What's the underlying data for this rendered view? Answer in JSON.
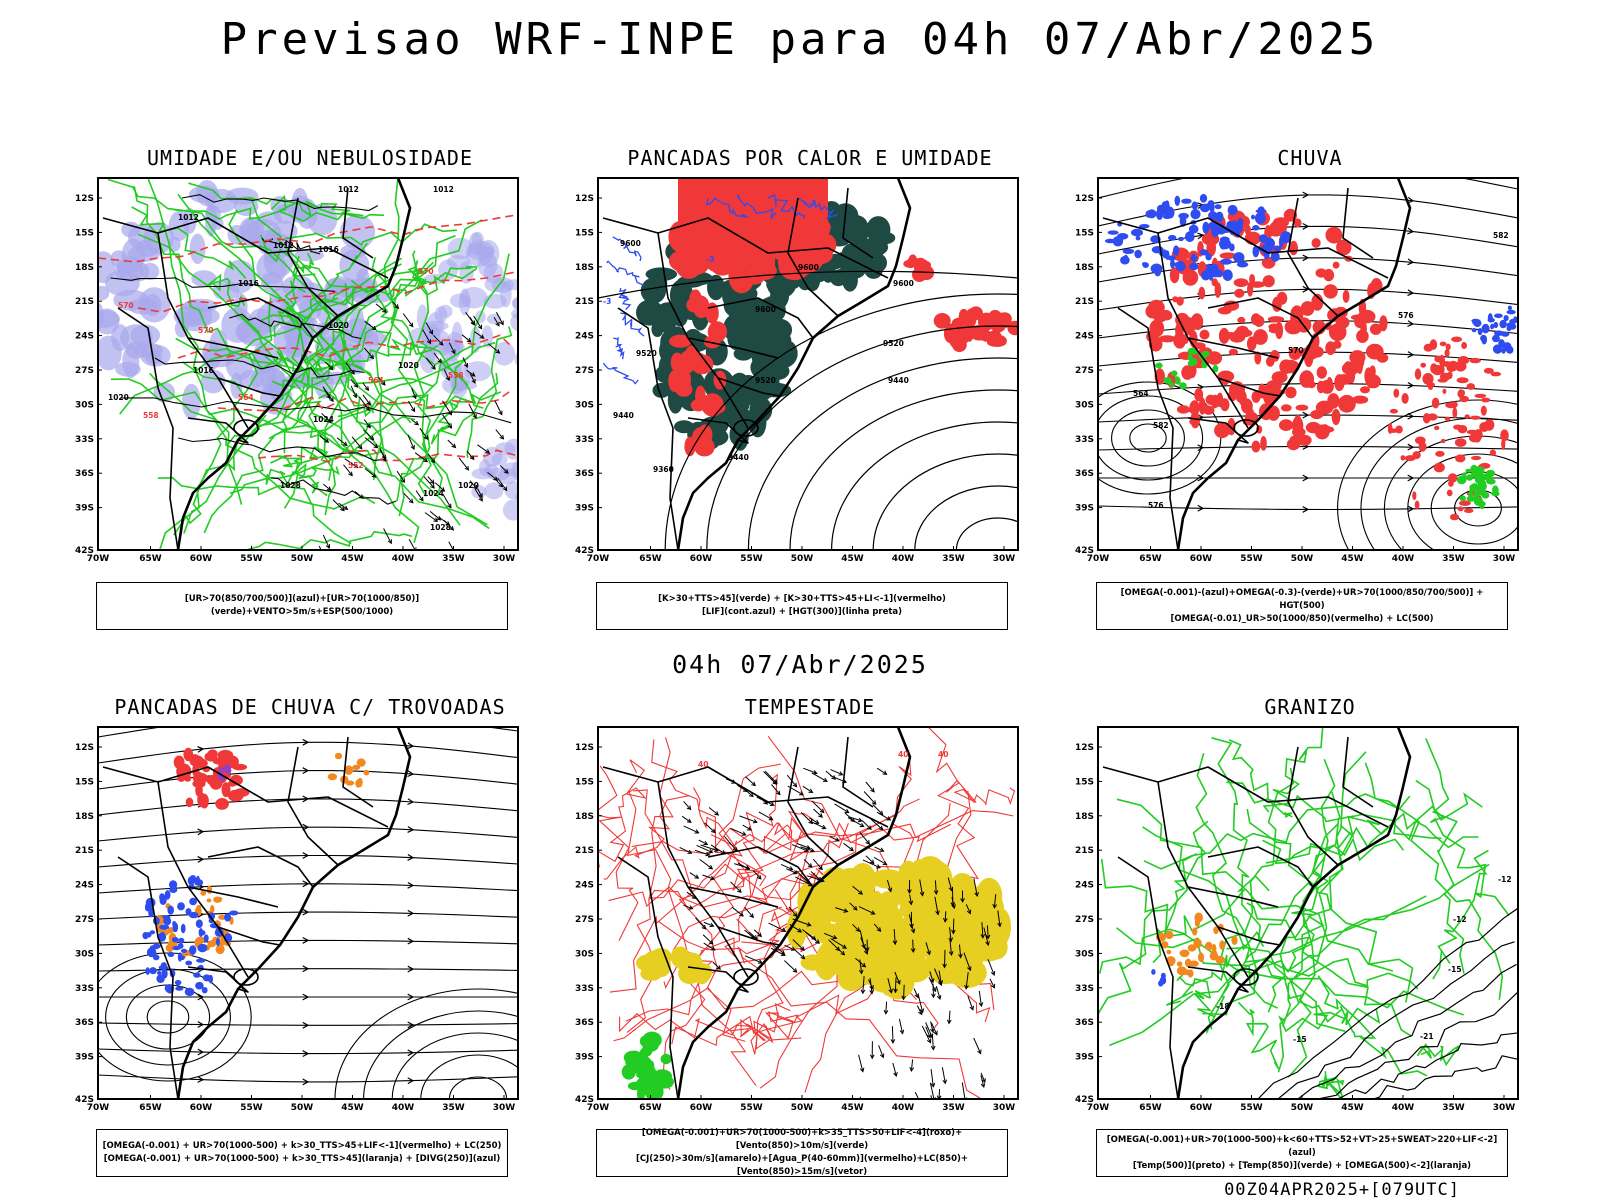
{
  "title": "Previsao WRF-INPE  para 04h 07/Abr/2025",
  "mid_title": "04h 07/Abr/2025",
  "footer": "00Z04APR2025+[079UTC]",
  "lat_labels": [
    "12S",
    "15S",
    "18S",
    "21S",
    "24S",
    "27S",
    "30S",
    "33S",
    "36S",
    "39S",
    "42S"
  ],
  "lon_labels": [
    "70W",
    "65W",
    "60W",
    "55W",
    "50W",
    "45W",
    "40W",
    "35W",
    "30W"
  ],
  "colors": {
    "blue": "#2f4cf0",
    "lavender": "#a8a8ec",
    "green": "#22cc22",
    "red": "#f03838",
    "darkteal": "#1f4a44",
    "orange": "#f08a20",
    "yellow": "#e6cf20",
    "purple": "#9040c0"
  },
  "panels": [
    {
      "title": "UMIDADE E/OU NEBULOSIDADE",
      "legend": [
        "[UR>70(850/700/500)](azul)+[UR>70(1000/850)](verde)+VENTO>5m/s+ESP(500/1000)"
      ],
      "labels": [
        "1012",
        "1012",
        "1012",
        "1012",
        "1016",
        "1016",
        "1016",
        "1020",
        "1020",
        "1020",
        "1024",
        "1024",
        "1028",
        "1028",
        "1020",
        "570",
        "570",
        "570",
        "564",
        "564",
        "558",
        "558",
        "552"
      ]
    },
    {
      "title": "PANCADAS POR CALOR E UMIDADE",
      "legend": [
        "[K>30+TTS>45](verde) + [K>30+TTS>45+LI<-1](vermelho)",
        "[LIF](cont.azul) + [HGT(300)](linha preta)"
      ],
      "labels": [
        "9600",
        "9600",
        "9600",
        "9600",
        "9520",
        "9520",
        "9520",
        "9440",
        "9440",
        "9440",
        "9360",
        "-3",
        "-3",
        "-3"
      ]
    },
    {
      "title": "CHUVA",
      "legend": [
        "[OMEGA(-0.001)-(azul)+OMEGA(-0.3)-(verde)+UR>70(1000/850/700/500)] + HGT(500)",
        "[OMEGA(-0.01)_UR>50(1000/850)(vermelho) + LC(500)"
      ],
      "labels": [
        "582",
        "576",
        "570",
        "564",
        "582",
        "576"
      ]
    },
    {
      "title": "PANCADAS DE CHUVA C/ TROVOADAS",
      "legend": [
        "[OMEGA(-0.001) + UR>70(1000-500) + k>30_TTS>45+LIF<-1](vermelho) + LC(250)",
        "[OMEGA(-0.001) + UR>70(1000-500) + k>30_TTS>45](laranja) + [DIVG(250)](azul)"
      ],
      "labels": []
    },
    {
      "title": "TEMPESTADE",
      "legend": [
        "[OMEGA(-0.001)+UR>70(1000-500)+k>35_TTS>50+LIF<-4](roxo)+[Vento(850)>10m/s](verde)",
        "[CJ(250)>30m/s](amarelo)+[Agua_P(40-60mm)](vermelho)+LC(850)+[Vento(850)>15m/s](vetor)"
      ],
      "labels": [
        "40",
        "40",
        "40"
      ]
    },
    {
      "title": "GRANIZO",
      "legend": [
        "[OMEGA(-0.001)+UR>70(1000-500)+k<60+TTS>52+VT>25+SWEAT>220+LIF<-2](azul)",
        "[Temp(500)](preto) + [Temp(850)](verde) + [OMEGA(500)<-2](laranja)"
      ],
      "labels": [
        "-12",
        "-15",
        "-18",
        "-15",
        "-21",
        "-12"
      ]
    }
  ]
}
